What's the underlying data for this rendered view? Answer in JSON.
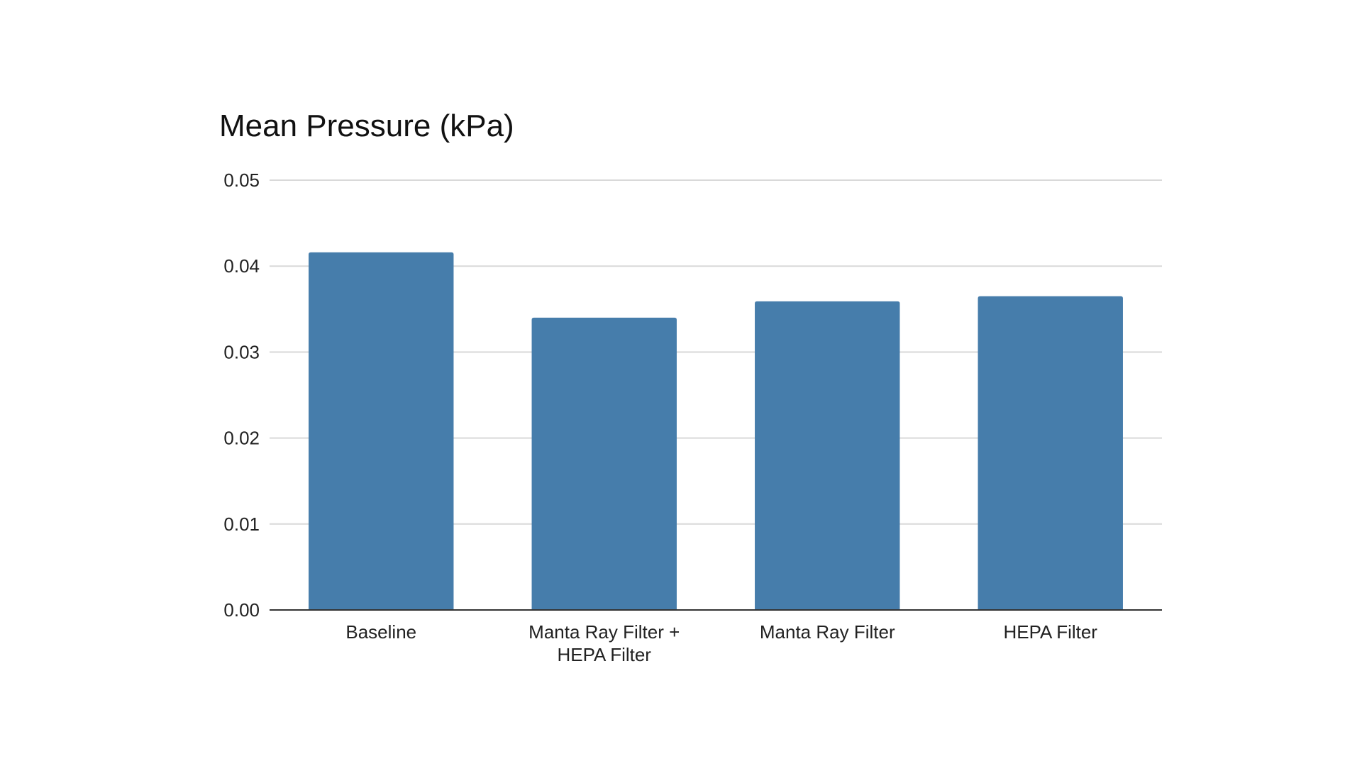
{
  "chart_data": {
    "type": "bar",
    "title": "Mean Pressure (kPa)",
    "xlabel": "",
    "ylabel": "",
    "categories": [
      "Baseline",
      "Manta Ray Filter + HEPA Filter",
      "Manta Ray Filter",
      "HEPA Filter"
    ],
    "category_lines": [
      [
        "Baseline"
      ],
      [
        "Manta Ray Filter +",
        "HEPA Filter"
      ],
      [
        "Manta Ray Filter"
      ],
      [
        "HEPA Filter"
      ]
    ],
    "values": [
      0.0416,
      0.034,
      0.0359,
      0.0365
    ],
    "ylim": [
      0,
      0.05
    ],
    "yticks": [
      "0.00",
      "0.01",
      "0.02",
      "0.03",
      "0.04",
      "0.05"
    ],
    "grid": true,
    "legend": "none",
    "colors": {
      "bar": "#467dab",
      "grid": "#d9d9d9",
      "axis": "#333333"
    }
  }
}
